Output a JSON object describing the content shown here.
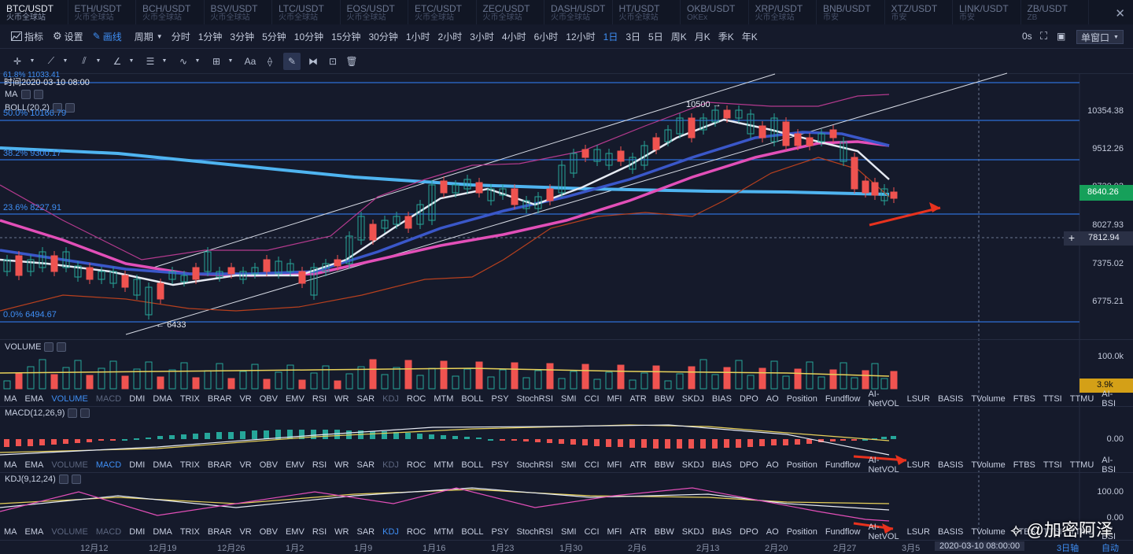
{
  "pairs": [
    {
      "name": "BTC/USDT",
      "ex": "火币全球站"
    },
    {
      "name": "ETH/USDT",
      "ex": "火币全球站"
    },
    {
      "name": "BCH/USDT",
      "ex": "火币全球站"
    },
    {
      "name": "BSV/USDT",
      "ex": "火币全球站"
    },
    {
      "name": "LTC/USDT",
      "ex": "火币全球站"
    },
    {
      "name": "EOS/USDT",
      "ex": "火币全球站"
    },
    {
      "name": "ETC/USDT",
      "ex": "火币全球站"
    },
    {
      "name": "ZEC/USDT",
      "ex": "火币全球站"
    },
    {
      "name": "DASH/USDT",
      "ex": "火币全球站"
    },
    {
      "name": "HT/USDT",
      "ex": "火币全球站"
    },
    {
      "name": "OKB/USDT",
      "ex": "OKEx"
    },
    {
      "name": "XRP/USDT",
      "ex": "火币全球站"
    },
    {
      "name": "BNB/USDT",
      "ex": "币安"
    },
    {
      "name": "XTZ/USDT",
      "ex": "币安"
    },
    {
      "name": "LINK/USDT",
      "ex": "币安"
    },
    {
      "name": "ZB/USDT",
      "ex": "ZB"
    }
  ],
  "toolbar": {
    "indicator": "指标",
    "settings": "设置",
    "draw": "画线",
    "period": "周期",
    "timeframes": [
      "分时",
      "1分钟",
      "3分钟",
      "5分钟",
      "10分钟",
      "15分钟",
      "30分钟",
      "1小时",
      "2小时",
      "3小时",
      "4小时",
      "6小时",
      "12小时",
      "1日",
      "3日",
      "5日",
      "周K",
      "月K",
      "季K",
      "年K"
    ],
    "active_tf": "1日",
    "seconds": "0s",
    "window": "单窗口"
  },
  "chart": {
    "time_label": "时间2020-03-10 08:00",
    "ma": "MA",
    "boll": "BOLL(20,2)",
    "fib": [
      "61.8% 11033.41",
      "50.0% 10166.79",
      "38.2% 9300.17",
      "23.6% 8227.91",
      "0.0% 6494.67"
    ],
    "price_axis": [
      "10354.38",
      "9512.26",
      "8730.02",
      "8027.93",
      "7375.02",
      "6775.21"
    ],
    "last_price": "8640.26",
    "cursor_price": "7812.94",
    "plus": "+",
    "high_note": "10500",
    "low_note": "6433"
  },
  "volume": {
    "label": "VOLUME",
    "axis": "100.0k",
    "last": "3.9k"
  },
  "macd": {
    "label": "MACD(12,26,9)",
    "axis": "0.00"
  },
  "kdj": {
    "label": "KDJ(9,12,24)",
    "axis": "100.00",
    "axis2": "0.00"
  },
  "indicators": [
    "MA",
    "EMA",
    "VOLUME",
    "MACD",
    "DMI",
    "DMA",
    "TRIX",
    "BRAR",
    "VR",
    "OBV",
    "EMV",
    "RSI",
    "WR",
    "SAR",
    "KDJ",
    "ROC",
    "MTM",
    "BOLL",
    "PSY",
    "StochRSI",
    "SMI",
    "CCI",
    "MFI",
    "ATR",
    "BBW",
    "SKDJ",
    "BIAS",
    "DPO",
    "AO",
    "Position",
    "Fundflow",
    "AI-NetVOL",
    "LSUR",
    "BASIS",
    "TVolume",
    "FTBS",
    "TTSI",
    "TTMU",
    "AI-BSI"
  ],
  "dates": [
    "12月12",
    "12月19",
    "12月26",
    "1月2",
    "1月9",
    "1月16",
    "1月23",
    "1月30",
    "2月6",
    "2月13",
    "2月20",
    "2月27",
    "3月5"
  ],
  "bottom_time": "2020-03-10 08:00:00",
  "bottom_right": "3日轴",
  "auto": "自动",
  "watermark": "@加密阿泽",
  "colors": {
    "up": "#26a69a",
    "down": "#ef5350",
    "accent": "#3f8ff5",
    "fib": "#2f6fd6"
  }
}
